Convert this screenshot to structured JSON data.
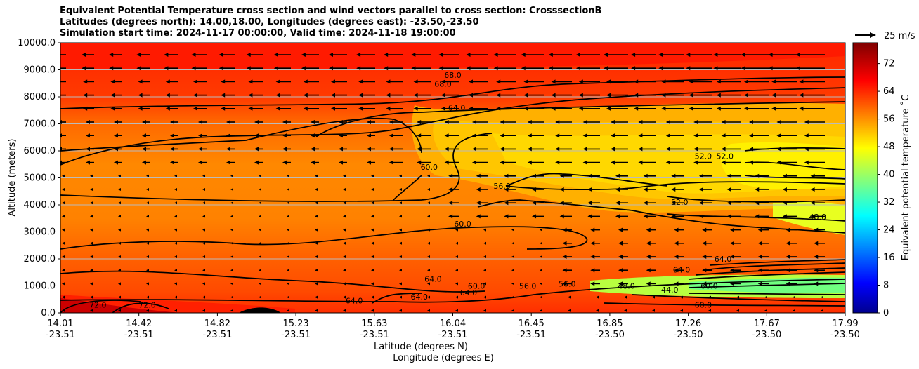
{
  "title": {
    "line1": "Equivalent Potential Temperature cross section and wind vectors parallel to cross section: CrosssectionB",
    "line2": "Latitudes (degrees north): 14.00,18.00, Longitudes (degrees east): -23.50,-23.50",
    "line3": "Simulation start time: 2024-11-17 00:00:00, Valid time: 2024-11-18 19:00:00"
  },
  "chart_data": {
    "type": "contourf",
    "ylabel": "Altitude (meters)",
    "xlabel_lat": "Latitude (degrees N)",
    "xlabel_lon": "Longitude (degrees E)",
    "ylim": [
      0,
      10000
    ],
    "y_ticks": [
      "0.0",
      "1000.0",
      "2000.0",
      "3000.0",
      "4000.0",
      "5000.0",
      "6000.0",
      "7000.0",
      "8000.0",
      "9000.0",
      "10000.0"
    ],
    "x_ticks_lat": [
      "14.01",
      "14.42",
      "14.82",
      "15.23",
      "15.63",
      "16.04",
      "16.45",
      "16.85",
      "17.26",
      "17.67",
      "17.99"
    ],
    "x_ticks_lon": [
      "-23.51",
      "-23.51",
      "-23.51",
      "-23.51",
      "-23.51",
      "-23.51",
      "-23.51",
      "-23.50",
      "-23.50",
      "-23.50",
      "-23.50"
    ],
    "grid": "horizontal",
    "colorbar": {
      "label": "Equivalent potential temperature ˚C",
      "range": [
        0,
        78
      ],
      "ticks": [
        "0",
        "8",
        "16",
        "24",
        "32",
        "40",
        "48",
        "56",
        "64",
        "72"
      ]
    },
    "quiver_key": "25 m/s",
    "contour_labels": [
      {
        "text": "68.0",
        "lat": 16.0,
        "alt": 8700
      },
      {
        "text": "68.0",
        "lat": 15.95,
        "alt": 8380
      },
      {
        "text": "64.0",
        "lat": 16.02,
        "alt": 7500
      },
      {
        "text": "60.0",
        "lat": 15.88,
        "alt": 5300
      },
      {
        "text": "56.0",
        "lat": 16.25,
        "alt": 4600
      },
      {
        "text": "60.0",
        "lat": 16.05,
        "alt": 3200
      },
      {
        "text": "52.0",
        "lat": 17.27,
        "alt": 5700
      },
      {
        "text": "52.0",
        "lat": 17.38,
        "alt": 5700
      },
      {
        "text": "52.0",
        "lat": 17.15,
        "alt": 4000
      },
      {
        "text": "48.0",
        "lat": 17.85,
        "alt": 3450
      },
      {
        "text": "64.0",
        "lat": 17.16,
        "alt": 1500
      },
      {
        "text": "64.0",
        "lat": 17.37,
        "alt": 1900
      },
      {
        "text": "56.0",
        "lat": 16.58,
        "alt": 970
      },
      {
        "text": "56.0",
        "lat": 16.38,
        "alt": 900
      },
      {
        "text": "60.0",
        "lat": 16.12,
        "alt": 900
      },
      {
        "text": "64.0",
        "lat": 15.9,
        "alt": 1150
      },
      {
        "text": "64.0",
        "lat": 16.08,
        "alt": 650
      },
      {
        "text": "64.0",
        "lat": 15.83,
        "alt": 500
      },
      {
        "text": "64.0",
        "lat": 15.5,
        "alt": 350
      },
      {
        "text": "48.0",
        "lat": 16.88,
        "alt": 900
      },
      {
        "text": "44.0",
        "lat": 17.1,
        "alt": 750
      },
      {
        "text": "60.0",
        "lat": 17.3,
        "alt": 900
      },
      {
        "text": "60.0",
        "lat": 17.27,
        "alt": 200
      },
      {
        "text": "72.0",
        "lat": 14.2,
        "alt": 200
      },
      {
        "text": "72.0",
        "lat": 14.45,
        "alt": 200
      }
    ]
  }
}
